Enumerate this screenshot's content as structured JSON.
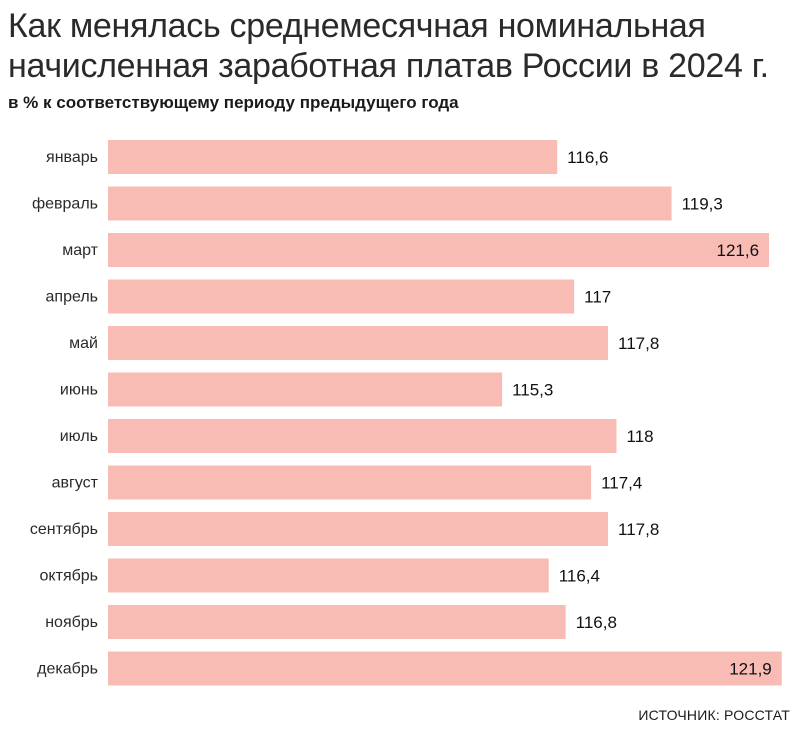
{
  "title": "Как менялась среднемесячная номинальная начисленная заработная платав России в 2024 г.",
  "subtitle": "в % к соответствующему периоду предыдущего года",
  "source": "ИСТОЧНИК: РОССТАТ",
  "colors": {
    "bar": "#f8bcb4",
    "text": "#1a1a1a"
  },
  "chart_data": {
    "type": "bar",
    "orientation": "horizontal",
    "categories": [
      "январь",
      "февраль",
      "март",
      "апрель",
      "май",
      "июнь",
      "июль",
      "август",
      "сентябрь",
      "октябрь",
      "ноябрь",
      "декабрь"
    ],
    "values": [
      116.6,
      119.3,
      121.6,
      117,
      117.8,
      115.3,
      118,
      117.4,
      117.8,
      116.4,
      116.8,
      121.9
    ],
    "value_labels": [
      "116,6",
      "119,3",
      "121,6",
      "117",
      "117,8",
      "115,3",
      "118",
      "117,4",
      "117,8",
      "116,4",
      "116,8",
      "121,9"
    ],
    "xlim": [
      106,
      122
    ],
    "title": "Как менялась среднемесячная номинальная начисленная заработная платав России в 2024 г.",
    "subtitle": "в % к соответствующему периоду предыдущего года",
    "grid": false
  }
}
